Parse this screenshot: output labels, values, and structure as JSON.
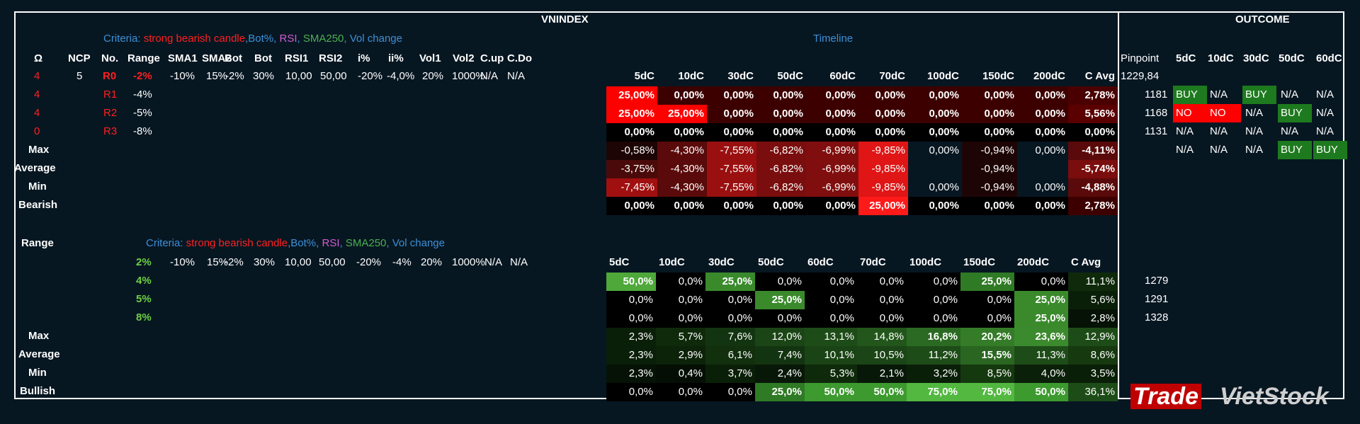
{
  "title": "VNINDEX",
  "outcome_title": "OUTCOME",
  "timeline_label": "Timeline",
  "criteria": {
    "prefix": "Criteria: ",
    "parts": [
      {
        "text": "strong bearish candle",
        "color": "#ff2020"
      },
      {
        "text": ",",
        "color": "#3d8fd6"
      },
      {
        "text": "Bot%",
        "color": "#3d8fd6"
      },
      {
        "text": ", ",
        "color": "#3d8fd6"
      },
      {
        "text": "RSI",
        "color": "#d45cd4"
      },
      {
        "text": ", ",
        "color": "#3d8fd6"
      },
      {
        "text": "SMA250",
        "color": "#4caf50"
      },
      {
        "text": ", Vol change",
        "color": "#3d8fd6"
      }
    ]
  },
  "top": {
    "headers": [
      "Ω",
      "NCP",
      "No.",
      "Range",
      "SMA1",
      "SMA2",
      "Bot",
      "Bot",
      "RSI1",
      "RSI2",
      "i%",
      "ii%",
      "Vol1",
      "Vol2",
      "C.up",
      "C.Do"
    ],
    "param_row": [
      "4",
      "5",
      "R0",
      "-2%",
      "-10%",
      "15%",
      "-2%",
      "30%",
      "10,00",
      "50,00",
      "-20%",
      "-4,0%",
      "20%",
      "1000%",
      "N/A",
      "N/A"
    ],
    "rows": [
      {
        "omega": "4",
        "no": "R1",
        "range": "-4%"
      },
      {
        "omega": "4",
        "no": "R2",
        "range": "-5%"
      },
      {
        "omega": "0",
        "no": "R3",
        "range": "-8%"
      }
    ],
    "stat_labels": [
      "Max",
      "Average",
      "Min",
      "Bearish"
    ],
    "timeline_headers": [
      "5dC",
      "10dC",
      "30dC",
      "50dC",
      "60dC",
      "70dC",
      "100dC",
      "150dC",
      "200dC",
      "C Avg"
    ],
    "grid": [
      [
        "25,00%",
        "0,00%",
        "0,00%",
        "0,00%",
        "0,00%",
        "0,00%",
        "0,00%",
        "0,00%",
        "0,00%",
        "2,78%"
      ],
      [
        "25,00%",
        "25,00%",
        "0,00%",
        "0,00%",
        "0,00%",
        "0,00%",
        "0,00%",
        "0,00%",
        "0,00%",
        "5,56%"
      ],
      [
        "0,00%",
        "0,00%",
        "0,00%",
        "0,00%",
        "0,00%",
        "0,00%",
        "0,00%",
        "0,00%",
        "0,00%",
        "0,00%"
      ],
      [
        "-0,58%",
        "-4,30%",
        "-7,55%",
        "-6,82%",
        "-6,99%",
        "-9,85%",
        "0,00%",
        "-0,94%",
        "0,00%",
        "-4,11%"
      ],
      [
        "-3,75%",
        "-4,30%",
        "-7,55%",
        "-6,82%",
        "-6,99%",
        "-9,85%",
        "",
        "-0,94%",
        "",
        "-5,74%"
      ],
      [
        "-7,45%",
        "-4,30%",
        "-7,55%",
        "-6,82%",
        "-6,99%",
        "-9,85%",
        "0,00%",
        "-0,94%",
        "0,00%",
        "-4,88%"
      ],
      [
        "0,00%",
        "0,00%",
        "0,00%",
        "0,00%",
        "0,00%",
        "25,00%",
        "0,00%",
        "0,00%",
        "0,00%",
        "2,78%"
      ]
    ],
    "grid_colors": [
      [
        "#ff0000",
        "#3d0000",
        "#3d0000",
        "#3d0000",
        "#3d0000",
        "#3d0000",
        "#3d0000",
        "#3d0000",
        "#3d0000",
        "#4a0000"
      ],
      [
        "#ff0000",
        "#ff0000",
        "#3d0000",
        "#3d0000",
        "#3d0000",
        "#3d0000",
        "#3d0000",
        "#3d0000",
        "#3d0000",
        "#5a0000"
      ],
      [
        "#000000",
        "#000000",
        "#000000",
        "#000000",
        "#000000",
        "#000000",
        "#000000",
        "#000000",
        "#000000",
        "#000000"
      ],
      [
        "#1e0505",
        "#5a0a0a",
        "#9a1010",
        "#7a0d0d",
        "#800e0e",
        "#e01515",
        "#071722",
        "#1e0505",
        "#071722",
        "#5a0a0a"
      ],
      [
        "#4a0a0a",
        "#5a0a0a",
        "#9a1010",
        "#7a0d0d",
        "#800e0e",
        "#e01515",
        "#071722",
        "#1e0505",
        "#071722",
        "#7a0d0d"
      ],
      [
        "#a01010",
        "#5a0a0a",
        "#9a1010",
        "#7a0d0d",
        "#800e0e",
        "#e01515",
        "#071722",
        "#1e0505",
        "#071722",
        "#5a0a0a"
      ],
      [
        "#000000",
        "#000000",
        "#000000",
        "#000000",
        "#000000",
        "#ff1a1a",
        "#000000",
        "#000000",
        "#000000",
        "#3d0000"
      ]
    ],
    "grid_bold": true
  },
  "outcome": {
    "headers": [
      "Pinpoint",
      "5dC",
      "10dC",
      "30dC",
      "50dC",
      "60dC"
    ],
    "pinpoint_param": "1229,84",
    "rows": [
      {
        "pinpoint": "1181",
        "cells": [
          "BUY",
          "N/A",
          "BUY",
          "N/A",
          "N/A"
        ],
        "colors": [
          "#1e7a1e",
          "",
          "#1e7a1e",
          "",
          ""
        ]
      },
      {
        "pinpoint": "1168",
        "cells": [
          "NO",
          "NO",
          "N/A",
          "BUY",
          "N/A"
        ],
        "colors": [
          "#ff0000",
          "#ff0000",
          "",
          "#1e7a1e",
          ""
        ]
      },
      {
        "pinpoint": "1131",
        "cells": [
          "N/A",
          "N/A",
          "N/A",
          "N/A",
          "N/A"
        ],
        "colors": [
          "",
          "",
          "",
          "",
          ""
        ]
      },
      {
        "pinpoint": "",
        "cells": [
          "N/A",
          "N/A",
          "N/A",
          "BUY",
          "BUY"
        ],
        "colors": [
          "",
          "",
          "",
          "#1e7a1e",
          "#1e7a1e"
        ]
      }
    ]
  },
  "bottom": {
    "range_label": "Range",
    "param_row": [
      "2%",
      "-10%",
      "15%",
      "-2%",
      "30%",
      "10,00",
      "50,00",
      "-20%",
      "-4%",
      "20%",
      "1000%",
      "N/A",
      "N/A"
    ],
    "ranges": [
      "4%",
      "5%",
      "8%"
    ],
    "stat_labels": [
      "Max",
      "Average",
      "Min",
      "Bullish"
    ],
    "timeline_headers": [
      "5dC",
      "10dC",
      "30dC",
      "50dC",
      "60dC",
      "70dC",
      "100dC",
      "150dC",
      "200dC",
      "C Avg"
    ],
    "grid": [
      [
        "50,0%",
        "0,0%",
        "25,0%",
        "0,0%",
        "0,0%",
        "0,0%",
        "0,0%",
        "25,0%",
        "0,0%",
        "11,1%"
      ],
      [
        "0,0%",
        "0,0%",
        "0,0%",
        "25,0%",
        "0,0%",
        "0,0%",
        "0,0%",
        "0,0%",
        "25,0%",
        "5,6%"
      ],
      [
        "0,0%",
        "0,0%",
        "0,0%",
        "0,0%",
        "0,0%",
        "0,0%",
        "0,0%",
        "0,0%",
        "25,0%",
        "2,8%"
      ],
      [
        "2,3%",
        "5,7%",
        "7,6%",
        "12,0%",
        "13,1%",
        "14,8%",
        "16,8%",
        "20,2%",
        "23,6%",
        "12,9%"
      ],
      [
        "2,3%",
        "2,9%",
        "6,1%",
        "7,4%",
        "10,1%",
        "10,5%",
        "11,2%",
        "15,5%",
        "11,3%",
        "8,6%"
      ],
      [
        "2,3%",
        "0,4%",
        "3,7%",
        "2,4%",
        "5,3%",
        "2,1%",
        "3,2%",
        "8,5%",
        "4,0%",
        "3,5%"
      ],
      [
        "0,0%",
        "0,0%",
        "0,0%",
        "25,0%",
        "50,0%",
        "50,0%",
        "75,0%",
        "75,0%",
        "50,0%",
        "36,1%"
      ]
    ],
    "grid_colors": [
      [
        "#4ea83a",
        "#000000",
        "#3a8a2c",
        "#000000",
        "#000000",
        "#000000",
        "#000000",
        "#2f7a24",
        "#000000",
        "#0f2a0b"
      ],
      [
        "#000000",
        "#000000",
        "#000000",
        "#3a8a2c",
        "#000000",
        "#000000",
        "#000000",
        "#000000",
        "#3a8a2c",
        "#0a1f08"
      ],
      [
        "#000000",
        "#000000",
        "#000000",
        "#000000",
        "#000000",
        "#000000",
        "#000000",
        "#000000",
        "#3a8a2c",
        "#061206"
      ],
      [
        "#0a1f08",
        "#0f2a0b",
        "#133410",
        "#1b4516",
        "#1e4c18",
        "#22561b",
        "#2b6a22",
        "#347c28",
        "#3c8a2e",
        "#1e4c18"
      ],
      [
        "#0a1f08",
        "#0c2309",
        "#122f0e",
        "#133410",
        "#1a4415",
        "#1b4516",
        "#1e4c18",
        "#2a6621",
        "#1e4c18",
        "#16390f"
      ],
      [
        "#061206",
        "#050e05",
        "#0a1f08",
        "#081808",
        "#0f2a0b",
        "#081808",
        "#0a1f08",
        "#15390f",
        "#0b2009",
        "#0a1f08"
      ],
      [
        "#000000",
        "#000000",
        "#000000",
        "#2f7a24",
        "#3c9a2e",
        "#3c9a2e",
        "#52b840",
        "#52b840",
        "#3c9a2e",
        "#1e4c18"
      ]
    ],
    "grid_bold": [
      [
        true,
        false,
        true,
        false,
        false,
        false,
        false,
        true,
        false,
        false
      ],
      [
        false,
        false,
        false,
        true,
        false,
        false,
        false,
        false,
        true,
        false
      ],
      [
        false,
        false,
        false,
        false,
        false,
        false,
        false,
        false,
        true,
        false
      ],
      [
        false,
        false,
        false,
        false,
        false,
        false,
        true,
        true,
        true,
        false
      ],
      [
        false,
        false,
        false,
        false,
        false,
        false,
        false,
        true,
        false,
        false
      ],
      [
        false,
        false,
        false,
        false,
        false,
        false,
        false,
        false,
        false,
        false
      ],
      [
        false,
        false,
        false,
        true,
        true,
        true,
        true,
        true,
        true,
        false
      ]
    ],
    "pinpoints": [
      "1279",
      "1291",
      "1328"
    ]
  },
  "watermark": {
    "part1": "Trade",
    "part2": "VietStock"
  }
}
